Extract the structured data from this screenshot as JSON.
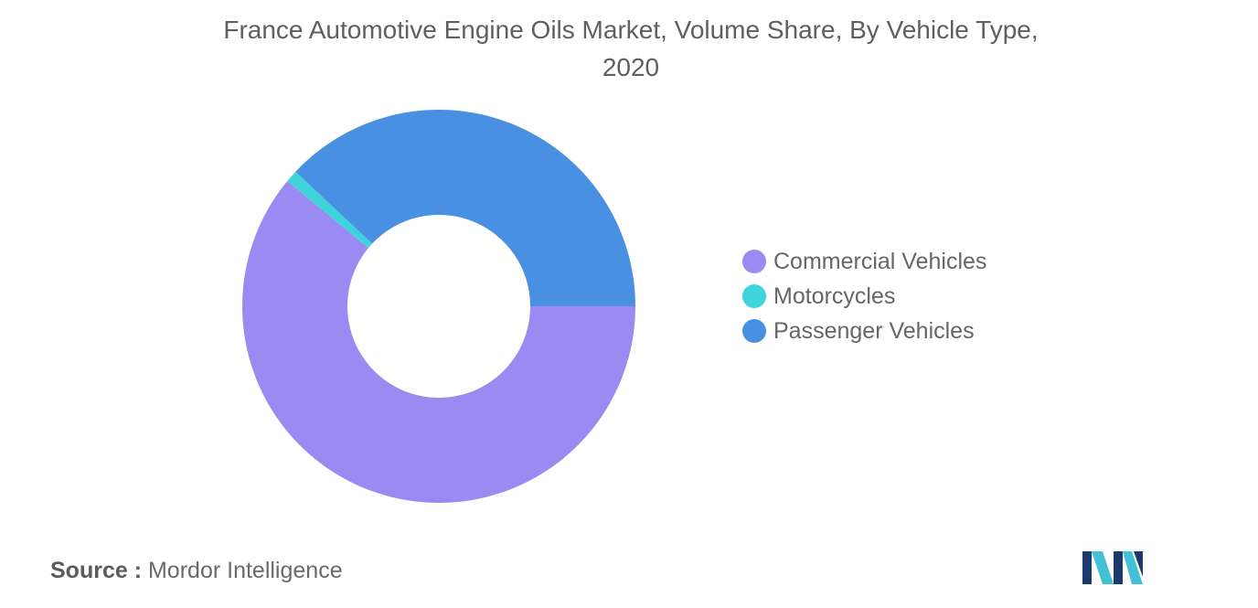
{
  "chart_data": {
    "type": "pie",
    "variant": "donut",
    "title": "France Automotive Engine Oils Market, Volume Share, By Vehicle Type, 2020",
    "categories": [
      "Commercial Vehicles",
      "Motorcycles",
      "Passenger Vehicles"
    ],
    "values": [
      61,
      1,
      38
    ],
    "colors": [
      "#9b8af1",
      "#3fd4dc",
      "#4a90e2"
    ],
    "legend": "right"
  },
  "source": {
    "label": "Source :",
    "value": "Mordor Intelligence"
  },
  "logo": {
    "icon": "mordor-intelligence-logo-icon",
    "colors": [
      "#1b3a6b",
      "#42c0d6"
    ]
  }
}
